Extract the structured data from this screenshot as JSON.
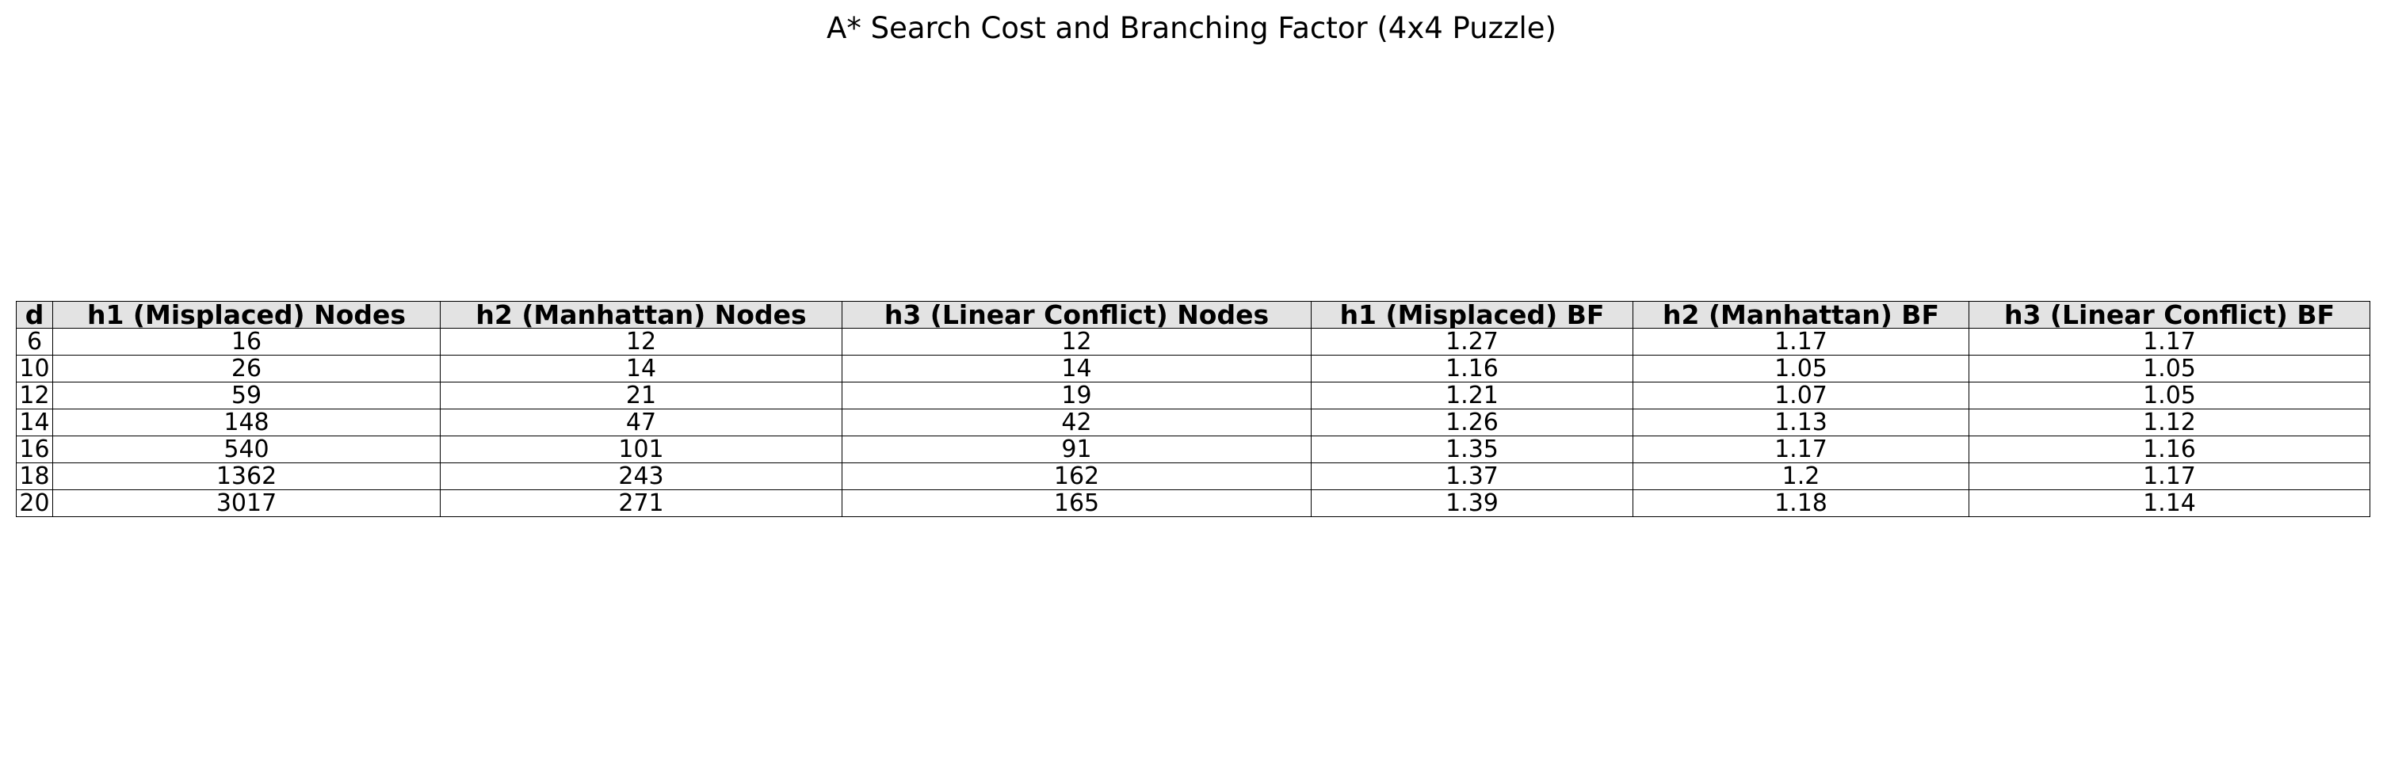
{
  "chart_data": {
    "type": "table",
    "title": "A* Search Cost and Branching Factor (4x4 Puzzle)",
    "columns": [
      "d",
      "h1 (Misplaced) Nodes",
      "h2 (Manhattan) Nodes",
      "h3 (Linear Conflict) Nodes",
      "h1 (Misplaced) BF",
      "h2 (Manhattan) BF",
      "h3 (Linear Conflict) BF"
    ],
    "rows": [
      [
        "6",
        "16",
        "12",
        "12",
        "1.27",
        "1.17",
        "1.17"
      ],
      [
        "10",
        "26",
        "14",
        "14",
        "1.16",
        "1.05",
        "1.05"
      ],
      [
        "12",
        "59",
        "21",
        "19",
        "1.21",
        "1.07",
        "1.05"
      ],
      [
        "14",
        "148",
        "47",
        "42",
        "1.26",
        "1.13",
        "1.12"
      ],
      [
        "16",
        "540",
        "101",
        "91",
        "1.35",
        "1.17",
        "1.16"
      ],
      [
        "18",
        "1362",
        "243",
        "162",
        "1.37",
        "1.2",
        "1.17"
      ],
      [
        "20",
        "3017",
        "271",
        "165",
        "1.39",
        "1.18",
        "1.14"
      ]
    ],
    "header_background": "#e3e3e3",
    "border_color": "#000000"
  }
}
